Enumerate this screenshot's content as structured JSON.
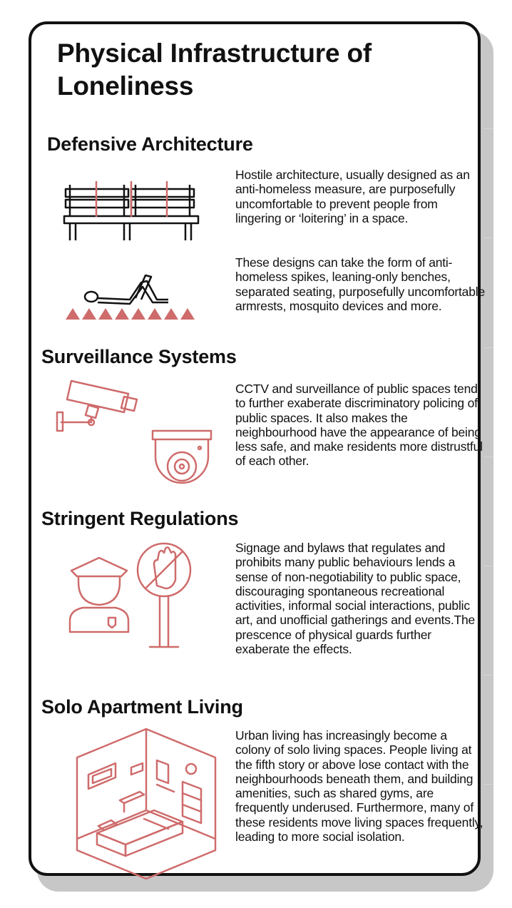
{
  "title": "Physical Infrastructure of Loneliness",
  "sections": [
    {
      "heading": "Defensive Architecture",
      "paragraphs": [
        "Hostile architecture, usually designed as an anti-homeless measure, are purposefully uncomfortable to prevent people from lingering or ‘loitering’ in a space.",
        "These designs can take the form of anti-homeless spikes, leaning-only benches, separated seating, purposefully uncomfortable armrests, mosquito devices and more."
      ]
    },
    {
      "heading": "Surveillance Systems",
      "paragraphs": [
        "CCTV and surveillance of public spaces tend to further exaberate discriminatory policing of public spaces. It also makes the neighbourhood have the appearance of being less safe, and make residents more distrustful of each other."
      ]
    },
    {
      "heading": "Stringent Regulations",
      "paragraphs": [
        "Signage and bylaws that regulates and prohibits many public behaviours lends a sense of non-negotiability to public space, discouraging spontaneous recreational activities, informal social interactions, public art, and unofficial gatherings and events.The prescence of physical guards further exaberate the effects."
      ]
    },
    {
      "heading": "Solo Apartment Living",
      "paragraphs": [
        "Urban living has increasingly become a colony of solo living spaces. People living at the fifth story or above lose contact with the neighbourhoods beneath them, and building amenities, such as shared gyms, are frequently underused. Furthermore, many of these residents move living spaces frequently, leading to more social isolation."
      ]
    }
  ],
  "colors": {
    "accent": "#cf6b6b",
    "ink": "#111111",
    "shadow": "#c7c7c7"
  },
  "icons": [
    "bench-icon",
    "spikes-sleeper-icon",
    "cctv-camera-icon",
    "dome-camera-icon",
    "guard-icon",
    "no-hand-sign-icon",
    "isometric-room-icon"
  ]
}
